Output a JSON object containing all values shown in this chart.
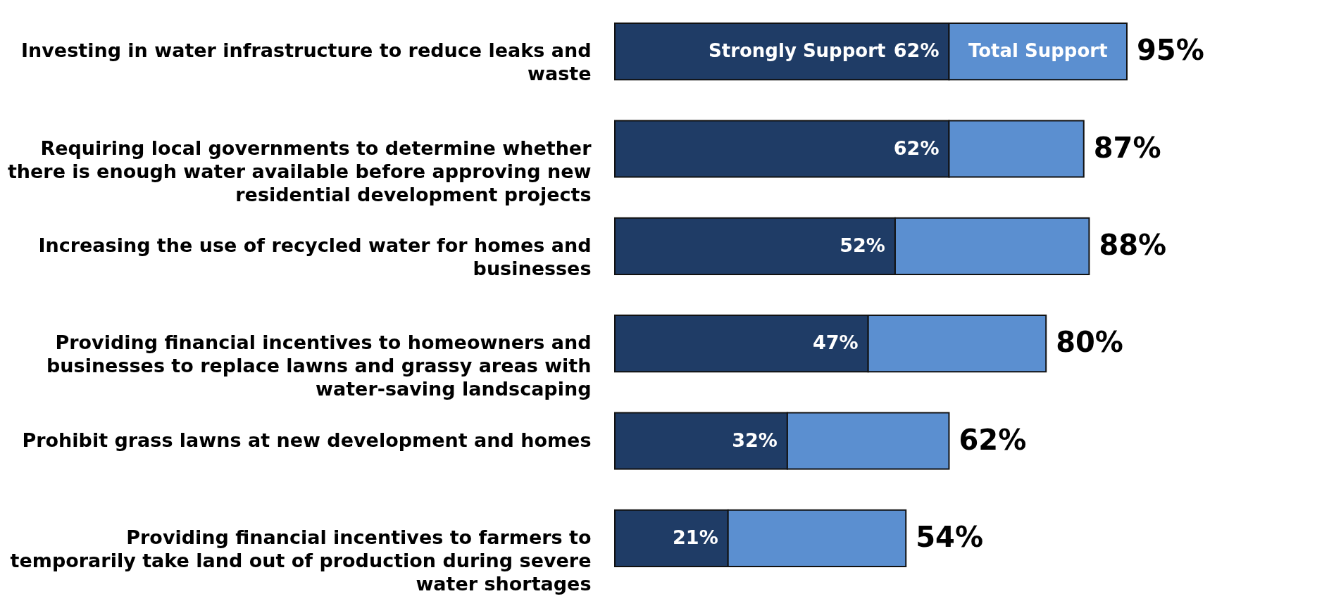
{
  "chart_data": {
    "type": "bar",
    "orientation": "horizontal",
    "stacked": true,
    "categories": [
      "Investing in water infrastructure to reduce leaks and waste",
      "Requiring local governments to determine whether there is enough water available before approving new residential development projects",
      "Increasing the use of recycled water for homes and businesses",
      "Providing financial incentives to homeowners and businesses to replace lawns and grassy areas with water-saving landscaping",
      "Prohibit grass lawns at new development and homes",
      "Providing financial incentives to farmers to temporarily take land out of production during severe water shortages"
    ],
    "series": [
      {
        "name": "Strongly Support",
        "color": "#1f3c66",
        "values": [
          62,
          62,
          52,
          47,
          32,
          21
        ],
        "value_labels": [
          "62%",
          "62%",
          "52%",
          "47%",
          "32%",
          "21%"
        ]
      },
      {
        "name": "Total Support",
        "color": "#5b8fd0",
        "values": [
          33,
          25,
          36,
          33,
          30,
          33
        ]
      }
    ],
    "totals": [
      "95%",
      "87%",
      "88%",
      "80%",
      "62%",
      "54%"
    ]
  }
}
